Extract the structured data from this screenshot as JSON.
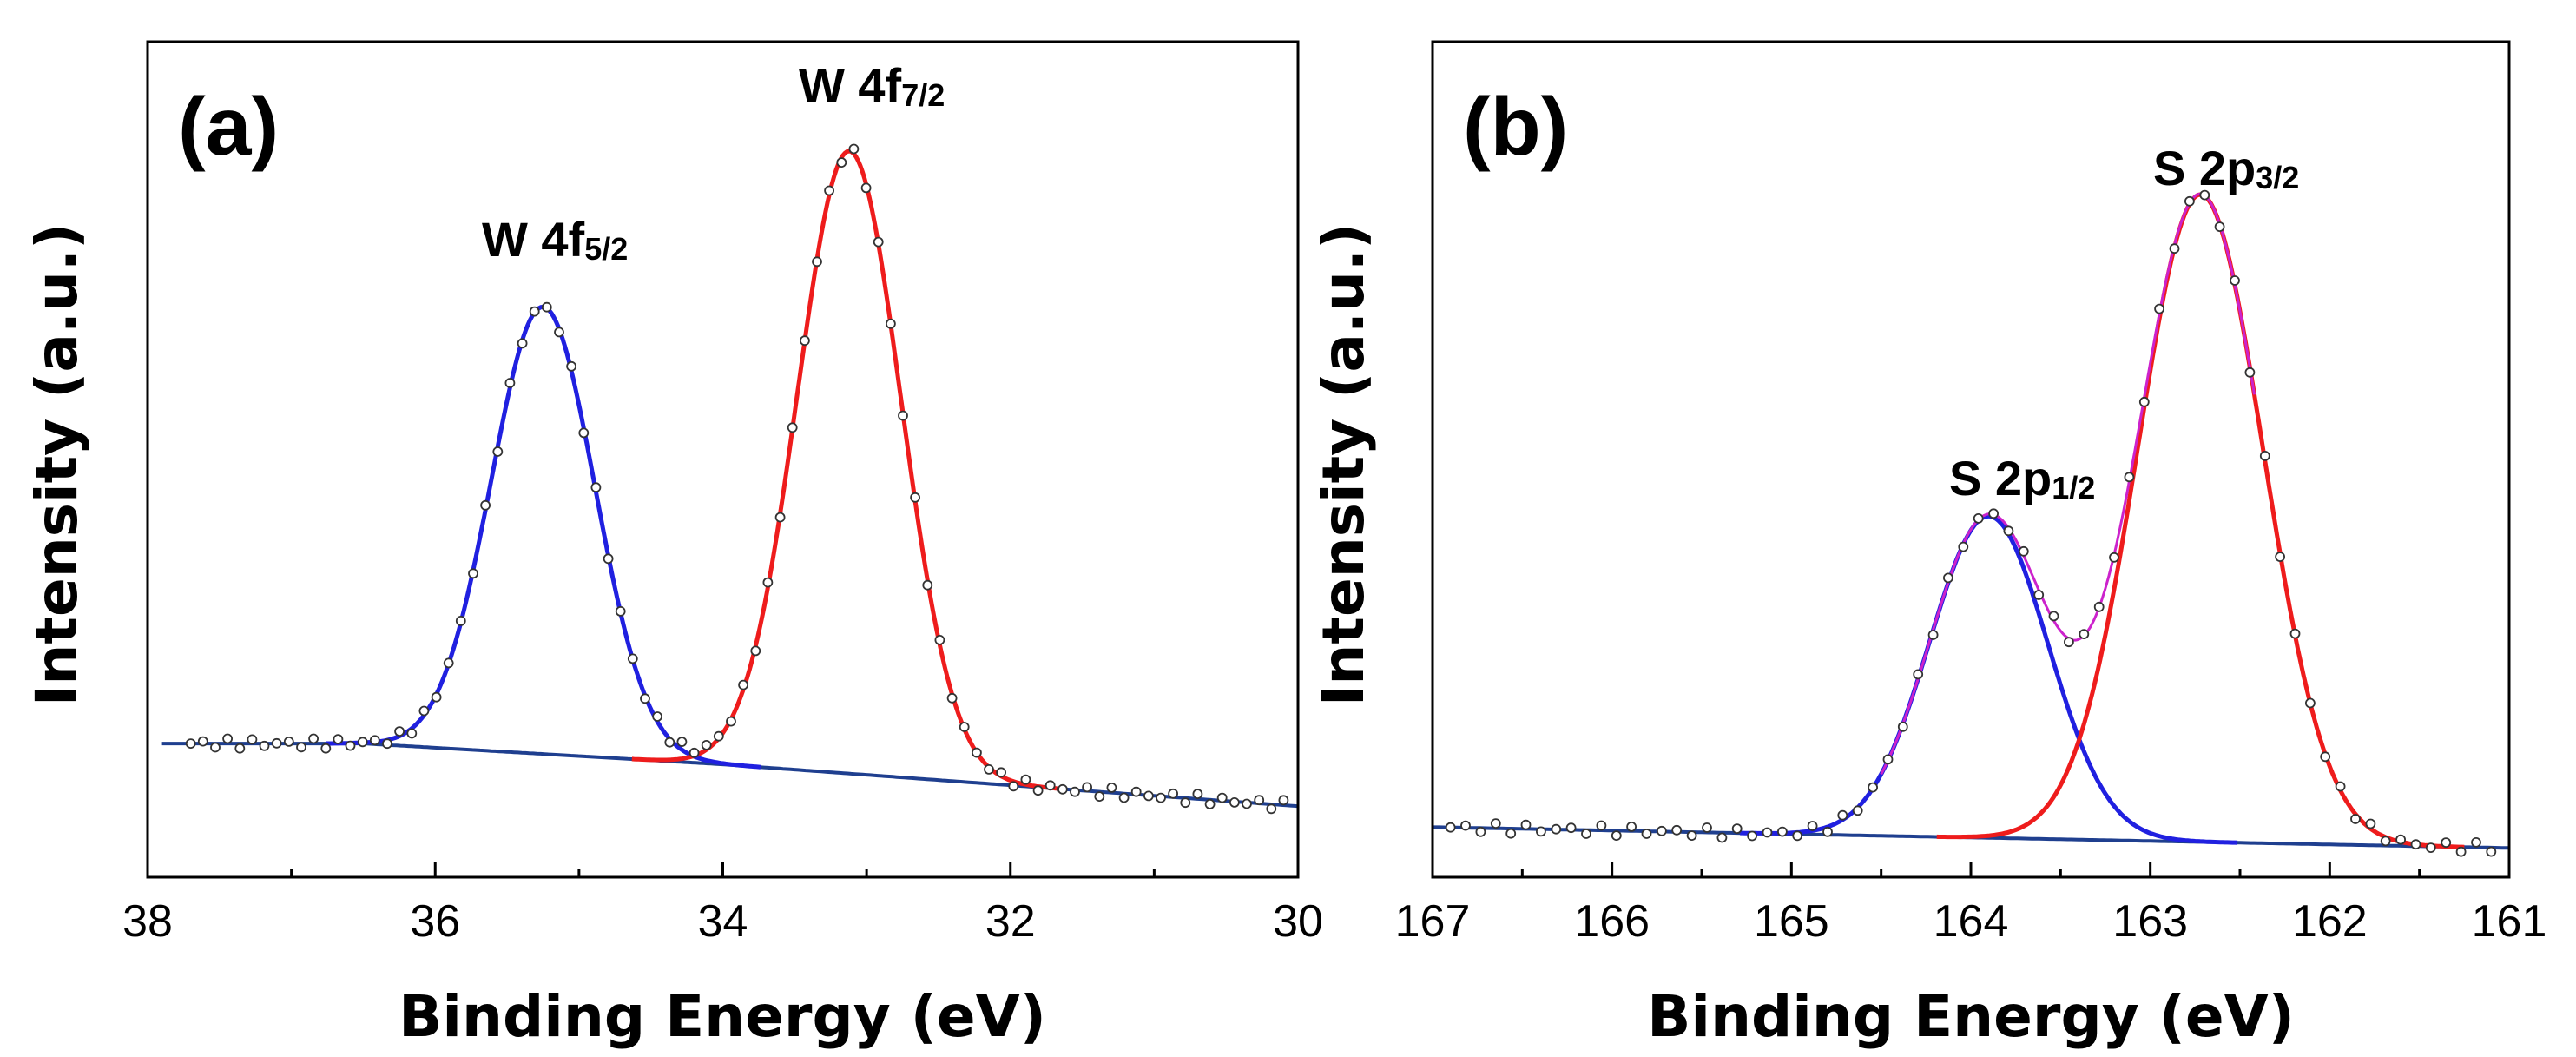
{
  "chart_data": [
    {
      "type": "line",
      "panel_label": "(a)",
      "xlabel": "Binding Energy (eV)",
      "ylabel": "Intensity (a.u.)",
      "xlim": [
        38,
        30
      ],
      "xticks": [
        "38",
        "36",
        "34",
        "32",
        "30"
      ],
      "ylim": [
        0,
        1
      ],
      "y_ticks_shown": false,
      "peaks": [
        {
          "label_main": "W 4f",
          "label_sub": "5/2",
          "center": 35.25,
          "height": 0.535,
          "sigma": 0.36,
          "color": "#2020e0"
        },
        {
          "label_main": "W 4f",
          "label_sub": "7/2",
          "center": 33.12,
          "height": 0.745,
          "sigma": 0.36,
          "color": "#ee1c1c"
        }
      ],
      "baseline": {
        "color": "#1f3f8f",
        "points": [
          [
            37.9,
            0.16
          ],
          [
            36.5,
            0.16
          ],
          [
            34.0,
            0.135
          ],
          [
            30.0,
            0.085
          ]
        ]
      },
      "data_points": {
        "x_start": 37.7,
        "x_end": 30.1,
        "count": 90,
        "marker": "open-circle"
      }
    },
    {
      "type": "line",
      "panel_label": "(b)",
      "xlabel": "Binding Energy (eV)",
      "ylabel": "Intensity (a.u.)",
      "xlim": [
        167,
        161
      ],
      "xticks": [
        "167",
        "166",
        "165",
        "164",
        "163",
        "162",
        "161"
      ],
      "ylim": [
        0,
        1
      ],
      "y_ticks_shown": false,
      "peaks": [
        {
          "label_main": "S 2p",
          "label_sub": "1/2",
          "center": 163.9,
          "height": 0.385,
          "sigma": 0.33,
          "color": "#2020e0"
        },
        {
          "label_main": "S 2p",
          "label_sub": "3/2",
          "center": 162.72,
          "height": 0.775,
          "sigma": 0.35,
          "color": "#ee1c1c"
        }
      ],
      "envelope_color": "#cc22cc",
      "baseline": {
        "color": "#1f3f8f",
        "points": [
          [
            167,
            0.06
          ],
          [
            161,
            0.035
          ]
        ]
      },
      "data_points": {
        "x_start": 166.9,
        "x_end": 161.1,
        "count": 70,
        "marker": "open-circle"
      }
    }
  ]
}
